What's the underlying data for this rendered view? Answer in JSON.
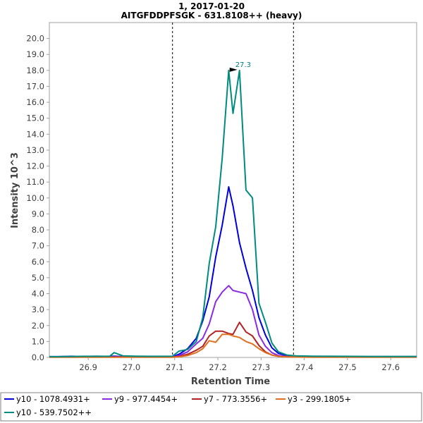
{
  "chart_data": {
    "type": "line",
    "title": "1, 2017-01-20",
    "subtitle": "AITGFDDPFSGK - 631.8108++ (heavy)",
    "xlabel": "Retention Time",
    "ylabel": "Intensity 10^3",
    "xlim": [
      26.81,
      27.66
    ],
    "ylim": [
      0,
      21.0
    ],
    "x_ticks": [
      "26.9",
      "27.0",
      "27.1",
      "27.2",
      "27.3",
      "27.4",
      "27.5",
      "27.6"
    ],
    "y_ticks": [
      "0.0",
      "1.0",
      "2.0",
      "3.0",
      "4.0",
      "5.0",
      "6.0",
      "7.0",
      "8.0",
      "9.0",
      "10.0",
      "11.0",
      "12.0",
      "13.0",
      "14.0",
      "15.0",
      "16.0",
      "17.0",
      "18.0",
      "19.0",
      "20.0"
    ],
    "grid": false,
    "integration_bounds": [
      27.095,
      27.375
    ],
    "peak_marker": {
      "x": 27.25,
      "y": 18.0,
      "label": "27.3",
      "color": "#008080"
    },
    "legend_position": "bottom",
    "x": [
      26.81,
      26.83,
      26.86,
      26.89,
      26.92,
      26.95,
      26.96,
      26.98,
      27.01,
      27.04,
      27.07,
      27.095,
      27.11,
      27.13,
      27.15,
      27.165,
      27.18,
      27.195,
      27.21,
      27.225,
      27.235,
      27.25,
      27.265,
      27.28,
      27.295,
      27.31,
      27.325,
      27.34,
      27.36,
      27.38,
      27.42,
      27.48,
      27.55,
      27.62,
      27.66
    ],
    "series": [
      {
        "name": "y10 - 1078.4931+",
        "color": "#0000dd",
        "values": [
          0.05,
          0.05,
          0.07,
          0.06,
          0.07,
          0.06,
          0.08,
          0.05,
          0.06,
          0.05,
          0.05,
          0.05,
          0.2,
          0.55,
          1.2,
          2.3,
          3.8,
          6.3,
          8.3,
          10.7,
          9.5,
          7.2,
          5.6,
          4.2,
          2.5,
          1.4,
          0.6,
          0.25,
          0.12,
          0.08,
          0.06,
          0.05,
          0.05,
          0.05,
          0.05
        ]
      },
      {
        "name": "y9 - 977.4454+",
        "color": "#8a2be2",
        "values": [
          0.02,
          0.03,
          0.03,
          0.03,
          0.03,
          0.03,
          0.03,
          0.03,
          0.03,
          0.03,
          0.03,
          0.03,
          0.12,
          0.35,
          0.85,
          1.2,
          2.1,
          3.5,
          4.1,
          4.5,
          4.2,
          4.1,
          4.0,
          3.0,
          1.4,
          0.7,
          0.3,
          0.12,
          0.06,
          0.04,
          0.03,
          0.03,
          0.03,
          0.03,
          0.03
        ]
      },
      {
        "name": "y7 - 773.3556+",
        "color": "#b22222",
        "values": [
          0.02,
          0.02,
          0.02,
          0.02,
          0.02,
          0.02,
          0.02,
          0.02,
          0.02,
          0.02,
          0.02,
          0.02,
          0.06,
          0.2,
          0.45,
          0.7,
          1.35,
          1.65,
          1.65,
          1.5,
          1.45,
          2.2,
          1.6,
          1.35,
          0.75,
          0.35,
          0.15,
          0.07,
          0.04,
          0.03,
          0.02,
          0.02,
          0.02,
          0.02,
          0.02
        ]
      },
      {
        "name": "y3 - 299.1805+",
        "color": "#e07020",
        "values": [
          0.01,
          0.01,
          0.01,
          0.01,
          0.01,
          0.01,
          0.01,
          0.01,
          0.01,
          0.01,
          0.01,
          0.01,
          0.04,
          0.12,
          0.3,
          0.55,
          1.05,
          0.95,
          1.45,
          1.45,
          1.35,
          1.25,
          1.0,
          0.85,
          0.55,
          0.3,
          0.15,
          0.07,
          0.03,
          0.02,
          0.01,
          0.01,
          0.01,
          0.01,
          0.01
        ]
      },
      {
        "name": "y10 - 539.7502++",
        "color": "#008b80",
        "values": [
          0.05,
          0.05,
          0.06,
          0.07,
          0.07,
          0.08,
          0.3,
          0.1,
          0.08,
          0.07,
          0.07,
          0.08,
          0.4,
          0.5,
          1.0,
          2.5,
          5.9,
          8.2,
          12.5,
          18.0,
          15.3,
          18.0,
          10.5,
          10.0,
          3.4,
          2.2,
          0.9,
          0.35,
          0.15,
          0.1,
          0.08,
          0.07,
          0.06,
          0.06,
          0.06
        ]
      }
    ]
  }
}
